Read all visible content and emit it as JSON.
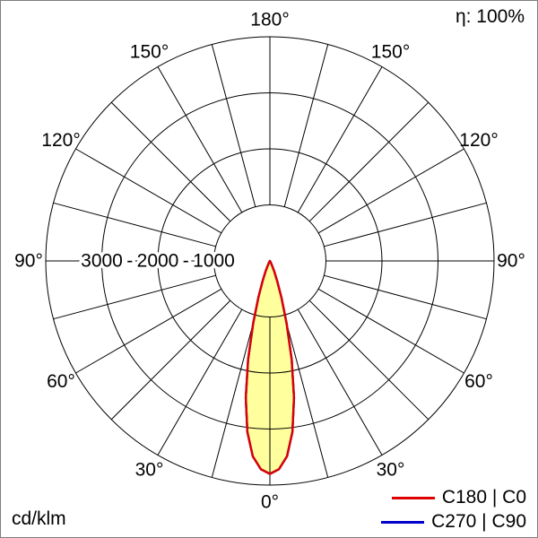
{
  "header": {
    "efficiency": "η: 100%"
  },
  "footer": {
    "unit": "cd/klm"
  },
  "legend": [
    {
      "label": "C180 | C0",
      "color": "#dd0000"
    },
    {
      "label": "C270 | C90",
      "color": "#0000cc"
    }
  ],
  "chart_data": {
    "type": "polar-luminous-intensity",
    "unit": "cd/klm",
    "efficiency_label": "η: 100%",
    "angle_grid_step_deg": 15,
    "angle_labels": [
      {
        "gamma": 0,
        "label": "0°"
      },
      {
        "gamma": 30,
        "label": "30°"
      },
      {
        "gamma": 60,
        "label": "60°"
      },
      {
        "gamma": 90,
        "label": "90°"
      },
      {
        "gamma": 120,
        "label": "120°"
      },
      {
        "gamma": 150,
        "label": "150°"
      },
      {
        "gamma": 180,
        "label": "180°"
      }
    ],
    "radial_axis": {
      "ticks": [
        3000,
        2000,
        1000
      ],
      "separator": "-",
      "max": 4000,
      "unit": "cd/klm"
    },
    "series": [
      {
        "name": "C180 | C0",
        "color": "#dd0000",
        "fill": "#ffff9e",
        "points_gamma_deg": [
          0,
          2.5,
          5,
          7.5,
          10,
          12.5,
          15,
          17.5,
          20,
          22.5,
          25,
          30,
          35
        ],
        "points_cd_per_klm": [
          3800,
          3720,
          3500,
          3080,
          2480,
          1800,
          1150,
          680,
          380,
          200,
          100,
          30,
          0
        ]
      },
      {
        "name": "C270 | C90",
        "color": "#0000cc",
        "fill": "none",
        "points_gamma_deg": [
          0,
          2.5,
          5,
          7.5,
          10,
          12.5,
          15,
          17.5,
          20,
          22.5,
          25,
          30,
          35
        ],
        "points_cd_per_klm": [
          3800,
          3720,
          3500,
          3080,
          2480,
          1800,
          1150,
          680,
          380,
          200,
          100,
          30,
          0
        ]
      }
    ]
  }
}
